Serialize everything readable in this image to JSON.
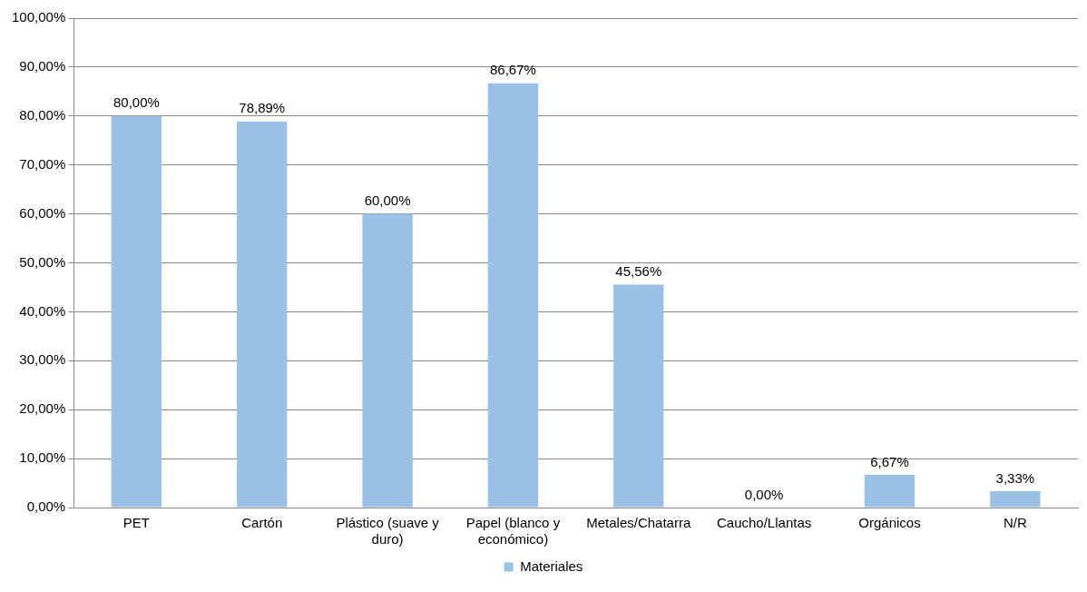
{
  "chart_data": {
    "type": "bar",
    "categories": [
      "PET",
      "Cartón",
      "Plástico (suave y duro)",
      "Papel (blanco y económico)",
      "Metales/Chatarra",
      "Caucho/Llantas",
      "Orgánicos",
      "N/R"
    ],
    "series": [
      {
        "name": "Materiales",
        "color": "#9bc2e6",
        "values": [
          80,
          78.89,
          60,
          86.67,
          45.56,
          0,
          6.67,
          3.33
        ],
        "value_labels": [
          "80,00%",
          "78,89%",
          "60,00%",
          "86,67%",
          "45,56%",
          "0,00%",
          "6,67%",
          "3,33%"
        ]
      }
    ],
    "ylim": [
      0,
      100
    ],
    "yticks": [
      {
        "value": 0,
        "label": "0,00%"
      },
      {
        "value": 10,
        "label": "10,00%"
      },
      {
        "value": 20,
        "label": "20,00%"
      },
      {
        "value": 30,
        "label": "30,00%"
      },
      {
        "value": 40,
        "label": "40,00%"
      },
      {
        "value": 50,
        "label": "50,00%"
      },
      {
        "value": 60,
        "label": "60,00%"
      },
      {
        "value": 70,
        "label": "70,00%"
      },
      {
        "value": 80,
        "label": "80,00%"
      },
      {
        "value": 90,
        "label": "90,00%"
      },
      {
        "value": 100,
        "label": "100,00%"
      }
    ],
    "grid": "y",
    "legend": "bottom"
  }
}
